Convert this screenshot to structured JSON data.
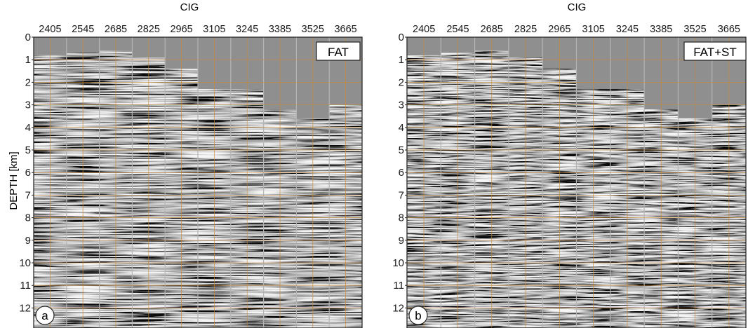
{
  "panels": [
    {
      "id": "a",
      "top_title": "CIG",
      "label_box": "FAT",
      "corner_letter": "a",
      "cig_labels": [
        "2405",
        "2545",
        "2685",
        "2825",
        "2965",
        "3105",
        "3245",
        "3385",
        "3525",
        "3665"
      ],
      "depth_labels": [
        "0",
        "1",
        "2",
        "3",
        "4",
        "5",
        "6",
        "7",
        "8",
        "9",
        "10",
        "11",
        "12"
      ],
      "y_axis_title": "DEPTH [km]",
      "water_bottom_depth_km": [
        0.8,
        0.7,
        0.6,
        0.9,
        1.4,
        2.3,
        2.3,
        3.2,
        3.6,
        3.0
      ]
    },
    {
      "id": "b",
      "top_title": "CIG",
      "label_box": "FAT+ST",
      "corner_letter": "b",
      "cig_labels": [
        "2405",
        "2545",
        "2685",
        "2825",
        "2965",
        "3105",
        "3245",
        "3385",
        "3525",
        "3665"
      ],
      "depth_labels": [
        "0",
        "1",
        "2",
        "3",
        "4",
        "5",
        "6",
        "7",
        "8",
        "9",
        "10",
        "11",
        "12"
      ],
      "y_axis_title": "",
      "water_bottom_depth_km": [
        0.8,
        0.7,
        0.6,
        0.9,
        1.4,
        2.3,
        2.3,
        3.2,
        3.6,
        3.0
      ]
    }
  ],
  "colors": {
    "background_gray": "#8f8f8f",
    "grid_orange": "#c8893a",
    "panel_border": "#222222"
  }
}
